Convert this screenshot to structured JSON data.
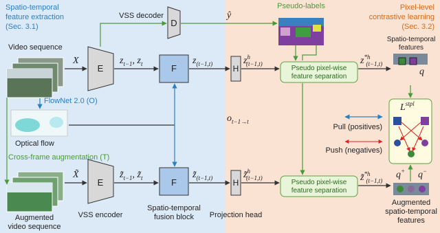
{
  "sections": {
    "left": [
      "Spatio-temporal",
      "feature extraction",
      "(Sec. 3.1)"
    ],
    "right": [
      "Pixel-level",
      "contrastive learning",
      "(Sec. 3.2)"
    ]
  },
  "labels": {
    "vss_decoder": "VSS decoder",
    "decoder": "D",
    "pseudo_labels": "Pseudo-labels",
    "video_sequence": "Video sequence",
    "encoder_top": "E",
    "fusion_top": "F",
    "head_top": "H",
    "separation_top": [
      "Pseudo pixel-wise",
      "feature separation"
    ],
    "features_top": [
      "Spatio-temporal",
      "features"
    ],
    "flownet": "FlowNet 2.0 (O)",
    "optical_flow": "Optical flow",
    "pull": "Pull (positives)",
    "push": "Push (negatives)",
    "cross_frame": "Cross-frame augmentation (T)",
    "encoder_bottom": "E",
    "fusion_bottom": "F",
    "head_bottom": "H",
    "separation_bottom": [
      "Pseudo pixel-wise",
      "feature separation"
    ],
    "augmented_video": [
      "Augmented",
      "video sequence"
    ],
    "vss_encoder": "VSS encoder",
    "fusion_block": [
      "Spatio-temporal",
      "fusion block"
    ],
    "projection_head": "Projection head",
    "features_bottom": [
      "Augmented",
      "spatio-temporal",
      "features"
    ]
  },
  "math": {
    "x_top": [
      {
        "text": "X"
      }
    ],
    "zz_top": [
      {
        "text": "z"
      },
      {
        "text": "t−1",
        "pos": "sub"
      },
      {
        "text": ", z"
      },
      {
        "text": "t",
        "pos": "sub"
      }
    ],
    "zf_top": [
      {
        "text": "z"
      },
      {
        "text": "(t−1,t)",
        "pos": "sub"
      }
    ],
    "zh_top": [
      {
        "text": "z"
      },
      {
        "text": "h",
        "pos": "sup"
      },
      {
        "text": "(t−1,t)",
        "pos": "sub"
      }
    ],
    "zsh_top": [
      {
        "text": "z"
      },
      {
        "text": "*h",
        "pos": "sup"
      },
      {
        "text": "(t−1,t)",
        "pos": "sub"
      }
    ],
    "yhat": [
      {
        "text": "ŷ"
      }
    ],
    "flow": [
      {
        "text": "o"
      },
      {
        "text": "t−1→t",
        "pos": "sub"
      }
    ],
    "loss": [
      {
        "text": "L"
      },
      {
        "text": "stpl",
        "pos": "sup"
      }
    ],
    "q": [
      {
        "text": "q"
      }
    ],
    "x_bottom": [
      {
        "text": "X̃"
      }
    ],
    "zz_bottom": [
      {
        "text": "z̃"
      },
      {
        "text": "t−1",
        "pos": "sub"
      },
      {
        "text": ", z̃"
      },
      {
        "text": "t",
        "pos": "sub"
      }
    ],
    "zf_bottom": [
      {
        "text": "z̃"
      },
      {
        "text": "(t−1,t)",
        "pos": "sub"
      }
    ],
    "zh_bottom": [
      {
        "text": "z̃"
      },
      {
        "text": "h",
        "pos": "sup"
      },
      {
        "text": "(t−1,t)",
        "pos": "sub"
      }
    ],
    "zsh_bottom": [
      {
        "text": "z̃"
      },
      {
        "text": "*h",
        "pos": "sup"
      },
      {
        "text": "(t−1,t)",
        "pos": "sub"
      }
    ],
    "q_plus": [
      {
        "text": "q"
      },
      {
        "text": "+",
        "pos": "sup"
      }
    ],
    "q_minus": [
      {
        "text": "q"
      },
      {
        "text": "−",
        "pos": "sup"
      }
    ]
  }
}
